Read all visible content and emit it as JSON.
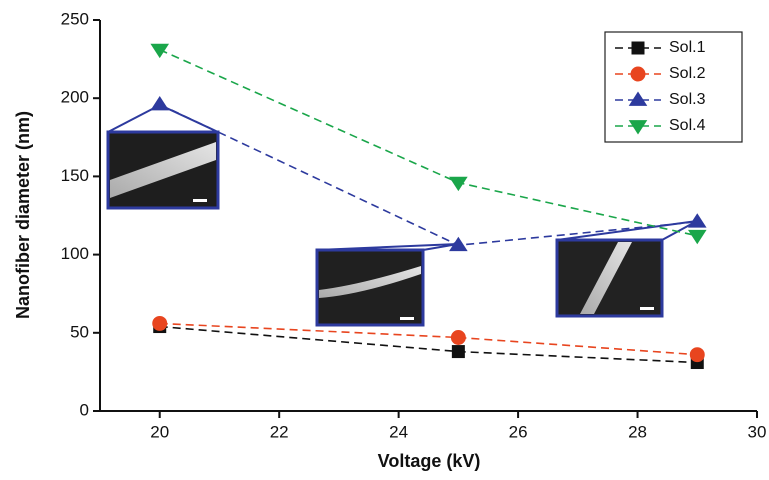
{
  "chart_data": {
    "type": "line",
    "x_label": "Voltage (kV)",
    "y_label": "Nanofiber diameter (nm)",
    "x": [
      20,
      25,
      29
    ],
    "series": [
      {
        "name": "Sol.1",
        "color": "#111111",
        "marker": "square",
        "values": [
          54,
          38,
          31
        ]
      },
      {
        "name": "Sol.2",
        "color": "#e8451f",
        "marker": "circle",
        "values": [
          56,
          47,
          36
        ]
      },
      {
        "name": "Sol.3",
        "color": "#2d3a9e",
        "marker": "triangle-up",
        "values": [
          196,
          106,
          121
        ]
      },
      {
        "name": "Sol.4",
        "color": "#1aa64a",
        "marker": "triangle-down",
        "values": [
          231,
          146,
          112
        ]
      }
    ],
    "xlim": [
      19,
      30
    ],
    "xticks": [
      20,
      22,
      24,
      26,
      28,
      30
    ],
    "ylim": [
      0,
      250
    ],
    "yticks": [
      0,
      50,
      100,
      150,
      200,
      250
    ],
    "line_style": "dashed",
    "legend": "upper right"
  }
}
